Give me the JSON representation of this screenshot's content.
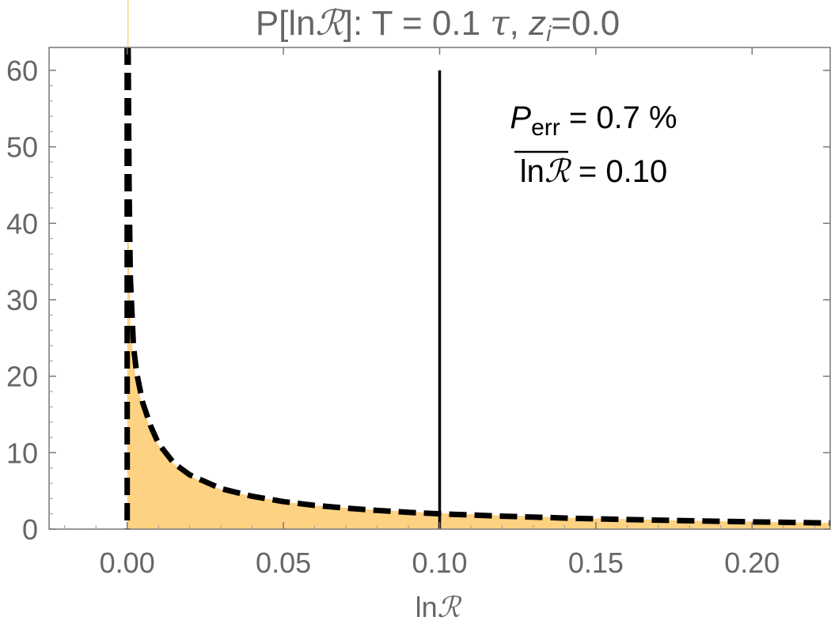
{
  "chart_data": {
    "type": "area",
    "title": "P[lnℛ]: T = 0.1 τ, z_i=0.0",
    "title_parts": {
      "prefix": "P[ln",
      "script_r": "ℛ",
      "middle": "]: T = 0.1 ",
      "tau": "τ",
      "comma": ", ",
      "z": "z",
      "z_sub": "i",
      "suffix": "=0.0"
    },
    "xlabel": "lnℛ",
    "xlabel_parts": {
      "ln": "ln",
      "r": "ℛ"
    },
    "ylabel": "",
    "xlim": [
      -0.025,
      0.225
    ],
    "ylim": [
      0,
      63
    ],
    "x_ticks": [
      0.0,
      0.05,
      0.1,
      0.15,
      0.2
    ],
    "x_tick_labels": [
      "0.00",
      "0.05",
      "0.10",
      "0.15",
      "0.20"
    ],
    "y_ticks": [
      0,
      10,
      20,
      30,
      40,
      50,
      60
    ],
    "y_tick_labels": [
      "0",
      "10",
      "20",
      "30",
      "40",
      "50",
      "60"
    ],
    "series": [
      {
        "kind": "histogram",
        "color": "#fdd282",
        "x": [
          0.0005,
          0.001,
          0.002,
          0.003,
          0.005,
          0.0075,
          0.01,
          0.015,
          0.02,
          0.025,
          0.03,
          0.04,
          0.05,
          0.06,
          0.07,
          0.08,
          0.09,
          0.1,
          0.12,
          0.14,
          0.16,
          0.18,
          0.2,
          0.225
        ],
        "y": [
          38,
          27,
          22,
          19,
          16,
          13,
          11,
          8.5,
          7.0,
          6.0,
          5.2,
          4.3,
          3.6,
          3.1,
          2.8,
          2.5,
          2.3,
          2.1,
          1.8,
          1.5,
          1.3,
          1.1,
          1.0,
          0.8
        ]
      },
      {
        "kind": "line",
        "style": "dashed",
        "color": "#000000",
        "x": [
          0.0003,
          0.0006,
          0.001,
          0.002,
          0.003,
          0.005,
          0.0075,
          0.01,
          0.015,
          0.02,
          0.03,
          0.04,
          0.05,
          0.06,
          0.07,
          0.08,
          0.09,
          0.1,
          0.12,
          0.14,
          0.16,
          0.18,
          0.2,
          0.225
        ],
        "y": [
          63,
          45,
          33,
          24,
          20.5,
          16.5,
          13.5,
          11.2,
          8.6,
          7.1,
          5.3,
          4.3,
          3.6,
          3.1,
          2.75,
          2.45,
          2.2,
          2.0,
          1.7,
          1.45,
          1.25,
          1.1,
          0.95,
          0.8
        ]
      }
    ],
    "vertical_lines": [
      {
        "x": 0.0,
        "style": "dashed",
        "color": "#000000"
      },
      {
        "x": 0.1,
        "style": "solid",
        "color": "#000000",
        "y_top": 60
      }
    ],
    "grid": false,
    "legend": "none",
    "annotations": {
      "p_err_symbol": "P",
      "p_err_sub": "err",
      "p_err_value": " = 0.7 %",
      "mean_ln": "ln",
      "mean_r": "ℛ",
      "mean_value": " = 0.10"
    },
    "colors": {
      "axis_text": "#666666",
      "frame": "#777777",
      "fill": "#fdd282"
    }
  }
}
